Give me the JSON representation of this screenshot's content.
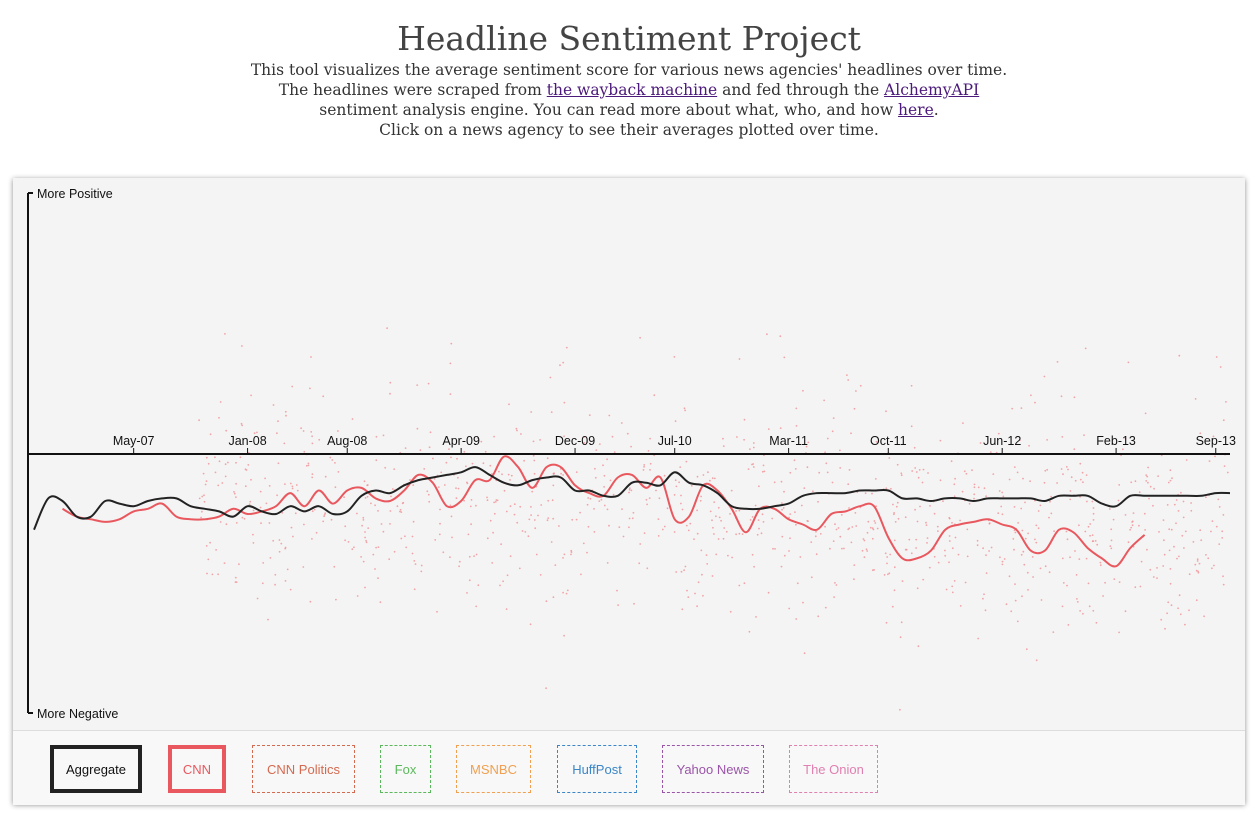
{
  "header": {
    "title": "Headline Sentiment Project",
    "line1": "This tool visualizes the average sentiment score for various news agencies' headlines over time.",
    "line2_pre": "The headlines were scraped from ",
    "link_wayback": "the wayback machine",
    "line2_mid": " and fed through the ",
    "link_alchemy": "AlchemyAPI",
    "line3_pre": "sentiment analysis engine. You can read more about what, who, and how ",
    "link_here": "here",
    "line3_post": ".",
    "line4": "Click on a news agency to see their averages plotted over time."
  },
  "chart_data": {
    "type": "line",
    "y_top_label": "More Positive",
    "y_bottom_label": "More Negative",
    "ylim": [
      -1,
      1
    ],
    "x_ticks": [
      "May-07",
      "Jan-08",
      "Aug-08",
      "Apr-09",
      "Dec-09",
      "Jul-10",
      "Mar-11",
      "Oct-11",
      "Jun-12",
      "Feb-13",
      "Sep-13"
    ],
    "x_tick_index": [
      0,
      8,
      15,
      23,
      31,
      38,
      46,
      53,
      61,
      69,
      76
    ],
    "x_start_index": -7,
    "x_end_index": 77,
    "series": [
      {
        "name": "Aggregate",
        "color": "#222222",
        "start_index": -7,
        "values": [
          -0.29,
          -0.17,
          -0.18,
          -0.24,
          -0.24,
          -0.18,
          -0.19,
          -0.2,
          -0.18,
          -0.17,
          -0.17,
          -0.2,
          -0.21,
          -0.22,
          -0.24,
          -0.2,
          -0.22,
          -0.23,
          -0.2,
          -0.22,
          -0.2,
          -0.23,
          -0.22,
          -0.16,
          -0.14,
          -0.15,
          -0.12,
          -0.1,
          -0.09,
          -0.08,
          -0.07,
          -0.05,
          -0.08,
          -0.11,
          -0.12,
          -0.1,
          -0.09,
          -0.09,
          -0.14,
          -0.14,
          -0.16,
          -0.16,
          -0.11,
          -0.11,
          -0.12,
          -0.07,
          -0.11,
          -0.12,
          -0.15,
          -0.2,
          -0.21,
          -0.21,
          -0.2,
          -0.19,
          -0.16,
          -0.15,
          -0.15,
          -0.15,
          -0.14,
          -0.14,
          -0.14,
          -0.17,
          -0.17,
          -0.18,
          -0.17,
          -0.17,
          -0.18,
          -0.17,
          -0.17,
          -0.17,
          -0.17,
          -0.18,
          -0.16,
          -0.16,
          -0.16,
          -0.19,
          -0.2,
          -0.16,
          -0.16,
          -0.16,
          -0.16,
          -0.16,
          -0.16,
          -0.15,
          -0.15
        ]
      },
      {
        "name": "CNN",
        "color": "#e8585e",
        "start_index": -5,
        "values": [
          -0.21,
          -0.24,
          -0.25,
          -0.26,
          -0.25,
          -0.22,
          -0.21,
          -0.19,
          -0.24,
          -0.25,
          -0.25,
          -0.24,
          -0.21,
          -0.23,
          -0.22,
          -0.2,
          -0.15,
          -0.2,
          -0.14,
          -0.19,
          -0.14,
          -0.13,
          -0.17,
          -0.18,
          -0.14,
          -0.08,
          -0.11,
          -0.2,
          -0.18,
          -0.1,
          -0.1,
          -0.01,
          -0.05,
          -0.13,
          -0.05,
          -0.05,
          -0.12,
          -0.15,
          -0.16,
          -0.09,
          -0.08,
          -0.13,
          -0.09,
          -0.25,
          -0.24,
          -0.12,
          -0.14,
          -0.21,
          -0.3,
          -0.21,
          -0.21,
          -0.25,
          -0.27,
          -0.29,
          -0.23,
          -0.22,
          -0.2,
          -0.2,
          -0.32,
          -0.4,
          -0.4,
          -0.37,
          -0.29,
          -0.27,
          -0.26,
          -0.25,
          -0.27,
          -0.29,
          -0.37,
          -0.37,
          -0.29,
          -0.3,
          -0.36,
          -0.4,
          -0.43,
          -0.36,
          -0.31
        ]
      }
    ]
  },
  "legend": [
    {
      "label": "Aggregate",
      "color": "#222222",
      "active": true
    },
    {
      "label": "CNN",
      "color": "#e8585e",
      "active": true
    },
    {
      "label": "CNN Politics",
      "color": "#d46a4f",
      "active": false
    },
    {
      "label": "Fox",
      "color": "#5cb85c",
      "active": false
    },
    {
      "label": "MSNBC",
      "color": "#f0a050",
      "active": false
    },
    {
      "label": "HuffPost",
      "color": "#3a86c8",
      "active": false
    },
    {
      "label": "Yahoo News",
      "color": "#9a55a8",
      "active": false
    },
    {
      "label": "The Onion",
      "color": "#e080b0",
      "active": false
    }
  ]
}
